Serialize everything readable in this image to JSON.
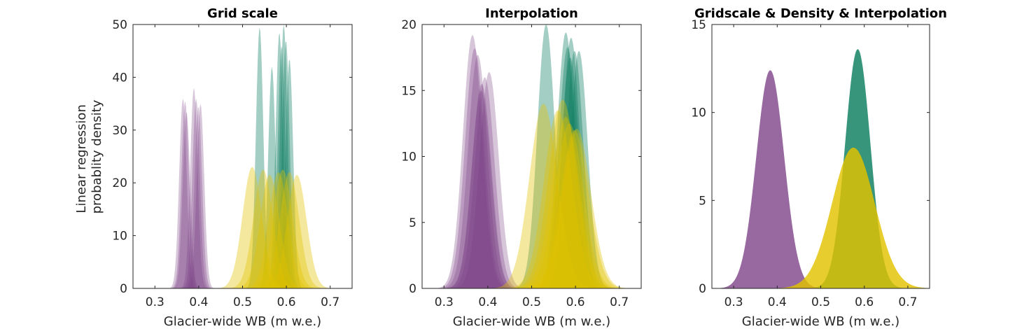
{
  "figure": {
    "ylabel_lines": [
      "Linear regression",
      "probablity density"
    ]
  },
  "chart_data": [
    {
      "type": "area",
      "title": "Grid scale",
      "xlabel": "Glacier-wide WB (m w.e.)",
      "ylabel": "Linear regression probablity density",
      "xlim": [
        0.25,
        0.75
      ],
      "ylim": [
        0,
        50
      ],
      "xticks": [
        0.3,
        0.4,
        0.5,
        0.6,
        0.7
      ],
      "yticks": [
        0,
        10,
        20,
        30,
        40,
        50
      ],
      "grid": false,
      "series": [
        {
          "group": "purple",
          "color": "#7b3f85",
          "opacity": 0.3,
          "peaks": [
            {
              "mu": 0.364,
              "peak": 36.0
            },
            {
              "mu": 0.369,
              "peak": 35.5
            },
            {
              "mu": 0.372,
              "peak": 33.5
            },
            {
              "mu": 0.389,
              "peak": 38.0
            },
            {
              "mu": 0.394,
              "peak": 36.0
            },
            {
              "mu": 0.399,
              "peak": 34.5
            },
            {
              "mu": 0.404,
              "peak": 35.0
            }
          ]
        },
        {
          "group": "green",
          "color": "#0e7f62",
          "opacity": 0.38,
          "peaks": [
            {
              "mu": 0.539,
              "peak": 49.5
            },
            {
              "mu": 0.567,
              "peak": 42.0
            },
            {
              "mu": 0.584,
              "peak": 48.5
            },
            {
              "mu": 0.589,
              "peak": 46.0
            },
            {
              "mu": 0.594,
              "peak": 50.0
            },
            {
              "mu": 0.599,
              "peak": 47.0
            },
            {
              "mu": 0.607,
              "peak": 43.5
            }
          ]
        },
        {
          "group": "yellow",
          "color": "#e2c200",
          "opacity": 0.38,
          "peaks": [
            {
              "mu": 0.522,
              "peak": 23.0
            },
            {
              "mu": 0.547,
              "peak": 22.5
            },
            {
              "mu": 0.562,
              "peak": 21.5
            },
            {
              "mu": 0.582,
              "peak": 22.0
            },
            {
              "mu": 0.592,
              "peak": 22.5
            },
            {
              "mu": 0.607,
              "peak": 22.0
            },
            {
              "mu": 0.624,
              "peak": 21.5
            }
          ]
        }
      ]
    },
    {
      "type": "area",
      "title": "Interpolation",
      "xlabel": "Glacier-wide WB (m w.e.)",
      "ylabel": "",
      "xlim": [
        0.25,
        0.75
      ],
      "ylim": [
        0,
        20
      ],
      "xticks": [
        0.3,
        0.4,
        0.5,
        0.6,
        0.7
      ],
      "yticks": [
        0,
        5,
        10,
        15,
        20
      ],
      "grid": false,
      "series": [
        {
          "group": "purple",
          "color": "#7b3f85",
          "opacity": 0.3,
          "peaks": [
            {
              "mu": 0.365,
              "peak": 19.2
            },
            {
              "mu": 0.37,
              "peak": 18.2
            },
            {
              "mu": 0.377,
              "peak": 17.7
            },
            {
              "mu": 0.386,
              "peak": 15.5
            },
            {
              "mu": 0.393,
              "peak": 16.0
            },
            {
              "mu": 0.403,
              "peak": 16.4
            },
            {
              "mu": 0.385,
              "peak": 15.0
            }
          ]
        },
        {
          "group": "green",
          "color": "#0e7f62",
          "opacity": 0.38,
          "peaks": [
            {
              "mu": 0.533,
              "peak": 20.0
            },
            {
              "mu": 0.578,
              "peak": 19.4
            },
            {
              "mu": 0.582,
              "peak": 18.3
            },
            {
              "mu": 0.59,
              "peak": 19.0
            },
            {
              "mu": 0.598,
              "peak": 18.0
            },
            {
              "mu": 0.608,
              "peak": 18.0
            },
            {
              "mu": 0.588,
              "peak": 17.5
            }
          ]
        },
        {
          "group": "yellow",
          "color": "#e2c200",
          "opacity": 0.38,
          "peaks": [
            {
              "mu": 0.527,
              "peak": 14.0
            },
            {
              "mu": 0.56,
              "peak": 13.5
            },
            {
              "mu": 0.571,
              "peak": 14.3
            },
            {
              "mu": 0.586,
              "peak": 12.5
            },
            {
              "mu": 0.598,
              "peak": 12.0
            },
            {
              "mu": 0.603,
              "peak": 12.1
            },
            {
              "mu": 0.578,
              "peak": 13.0
            }
          ]
        }
      ]
    },
    {
      "type": "area",
      "title": "Gridscale & Density & Interpolation",
      "xlabel": "Glacier-wide WB (m w.e.)",
      "ylabel": "",
      "xlim": [
        0.25,
        0.75
      ],
      "ylim": [
        0,
        15
      ],
      "xticks": [
        0.3,
        0.4,
        0.5,
        0.6,
        0.7
      ],
      "yticks": [
        0,
        5,
        10,
        15
      ],
      "grid": false,
      "series": [
        {
          "group": "purple",
          "color": "#7b3f85",
          "opacity": 0.78,
          "peaks": [
            {
              "mu": 0.384,
              "peak": 12.4
            }
          ]
        },
        {
          "group": "green",
          "color": "#0e7f62",
          "opacity": 0.83,
          "peaks": [
            {
              "mu": 0.585,
              "peak": 13.6
            }
          ]
        },
        {
          "group": "yellow",
          "color": "#e2c200",
          "opacity": 0.82,
          "peaks": [
            {
              "mu": 0.575,
              "peak": 8.0
            }
          ]
        }
      ]
    }
  ]
}
